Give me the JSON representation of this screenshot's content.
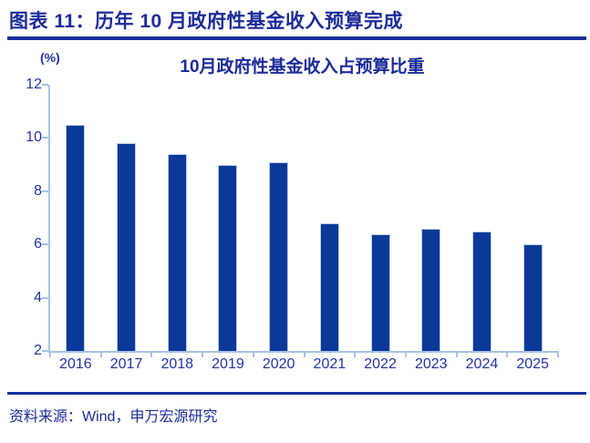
{
  "header": {
    "title": "图表 11：历年 10 月政府性基金收入预算完成"
  },
  "chart_data": {
    "type": "bar",
    "title": "10月政府性基金收入占预算比重",
    "xlabel": "",
    "ylabel": "(%)",
    "categories": [
      "2016",
      "2017",
      "2018",
      "2019",
      "2020",
      "2021",
      "2022",
      "2023",
      "2024",
      "2025"
    ],
    "values": [
      10.5,
      9.8,
      9.4,
      9.0,
      9.1,
      6.8,
      6.4,
      6.6,
      6.5,
      6.0
    ],
    "ylim": [
      2,
      12
    ],
    "yticks": [
      2,
      4,
      6,
      8,
      10,
      12
    ],
    "grid": false,
    "legend": false
  },
  "footer": {
    "source": "资料来源：Wind，申万宏源研究"
  },
  "colors": {
    "bar": "#0C3898",
    "axis_line": "#A6C3E8",
    "heading_text": "#1B2A99",
    "label_text": "#2233A6",
    "rule": "#16309E",
    "background": "#FFFFFF"
  }
}
